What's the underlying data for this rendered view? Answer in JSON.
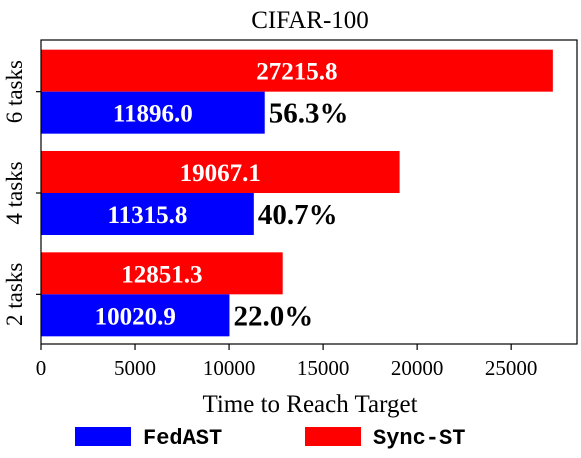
{
  "chart_data": {
    "type": "bar",
    "orientation": "horizontal",
    "title": "CIFAR-100",
    "xlabel": "Time to Reach Target",
    "ylabel": "",
    "categories": [
      "2 tasks",
      "4 tasks",
      "6 tasks"
    ],
    "series": [
      {
        "name": "FedAST",
        "color": "#0000ff",
        "values": [
          10020.9,
          11315.8,
          11896.0
        ]
      },
      {
        "name": "Sync-ST",
        "color": "#ff0000",
        "values": [
          12851.3,
          19067.1,
          27215.8
        ]
      }
    ],
    "value_labels": {
      "FedAST": [
        "10020.9",
        "11315.8",
        "11896.0"
      ],
      "Sync-ST": [
        "12851.3",
        "19067.1",
        "27215.8"
      ]
    },
    "improvement_labels": [
      "22.0%",
      "40.7%",
      "56.3%"
    ],
    "xlim": [
      0,
      28500
    ],
    "xticks": [
      0,
      5000,
      10000,
      15000,
      20000,
      25000
    ],
    "xtick_labels": [
      "0",
      "5000",
      "10000",
      "15000",
      "20000",
      "25000"
    ],
    "grid": false,
    "legend_position": "bottom"
  }
}
